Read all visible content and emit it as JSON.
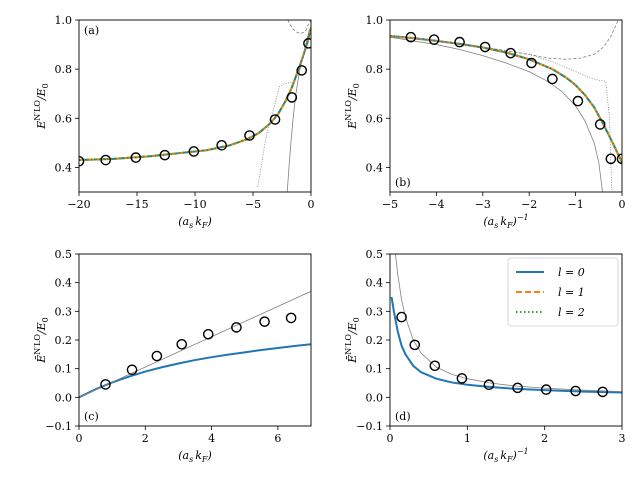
{
  "figure": {
    "description_free": true
  },
  "colors": {
    "l0": "#1f77b4",
    "l1": "#ff7f0e",
    "l2": "#2ca02c",
    "thin": "#808080",
    "marker": "#000000"
  },
  "legend": {
    "entries": [
      {
        "key": "l0",
        "label": "l = 0",
        "style": "solid"
      },
      {
        "key": "l1",
        "label": "l = 1",
        "style": "dashed"
      },
      {
        "key": "l2",
        "label": "l = 2",
        "style": "dotted"
      }
    ]
  },
  "chart_data": [
    {
      "id": "a",
      "type": "line",
      "panel_label": "(a)",
      "label_pos": "top-left",
      "xlabel": "(a_s k_F)",
      "ylabel": "E^{N'LO}/E_0",
      "xlim": [
        -20,
        0
      ],
      "ylim": [
        0.3,
        1.0
      ],
      "xticks": [
        -20,
        -15,
        -10,
        -5,
        0
      ],
      "yticks": [
        0.4,
        0.6,
        0.8,
        1.0
      ],
      "ytick_labels": [
        "0.4",
        "0.6",
        "0.8",
        "1.0"
      ],
      "series": [
        {
          "name": "l = 0",
          "style": "solid",
          "color_key": "l0",
          "x": [
            -20,
            -17,
            -14,
            -11,
            -9,
            -7,
            -5.5,
            -4.5,
            -3.5,
            -2.8,
            -2.2,
            -1.7,
            -1.3,
            -1.0,
            -0.7,
            -0.5,
            -0.3,
            -0.1,
            0
          ],
          "y": [
            0.43,
            0.435,
            0.445,
            0.46,
            0.47,
            0.49,
            0.515,
            0.54,
            0.58,
            0.62,
            0.67,
            0.72,
            0.77,
            0.81,
            0.85,
            0.88,
            0.91,
            0.95,
            0.97
          ]
        },
        {
          "name": "l = 1",
          "style": "dashed",
          "color_key": "l1",
          "x": [
            -20,
            -17,
            -14,
            -11,
            -9,
            -7,
            -5.5,
            -4.5,
            -3.5,
            -2.8,
            -2.2,
            -1.7,
            -1.3,
            -1.0,
            -0.7,
            -0.5,
            -0.3,
            -0.1,
            0
          ],
          "y": [
            0.43,
            0.435,
            0.445,
            0.46,
            0.47,
            0.49,
            0.515,
            0.54,
            0.58,
            0.62,
            0.67,
            0.72,
            0.77,
            0.81,
            0.85,
            0.88,
            0.91,
            0.95,
            0.97
          ]
        },
        {
          "name": "l = 2",
          "style": "dotted",
          "color_key": "l2",
          "x": [
            -20,
            -17,
            -14,
            -11,
            -9,
            -7,
            -5.5,
            -4.5,
            -3.5,
            -2.8,
            -2.2,
            -1.7,
            -1.3,
            -1.0,
            -0.7,
            -0.5,
            -0.3,
            -0.1,
            0
          ],
          "y": [
            0.43,
            0.435,
            0.445,
            0.46,
            0.47,
            0.49,
            0.515,
            0.54,
            0.58,
            0.62,
            0.67,
            0.72,
            0.77,
            0.81,
            0.85,
            0.88,
            0.91,
            0.95,
            0.97
          ]
        },
        {
          "name": "ref-solid",
          "style": "thin-solid",
          "color_key": "thin",
          "x": [
            -2.05,
            -1.9,
            -1.7,
            -1.5,
            -1.3,
            -1.1,
            -0.9,
            -0.7,
            -0.5,
            -0.3,
            -0.15
          ],
          "y": [
            0.3,
            0.4,
            0.52,
            0.62,
            0.7,
            0.76,
            0.81,
            0.85,
            0.89,
            0.93,
            0.96
          ]
        },
        {
          "name": "ref-dotted",
          "style": "thin-dotted",
          "color_key": "thin",
          "x": [
            -4.6,
            -4.3,
            -4.0,
            -3.7,
            -3.4,
            -3.1,
            -2.9,
            -2.7,
            -2.3,
            -1.9,
            -1.5
          ],
          "y": [
            0.32,
            0.4,
            0.49,
            0.56,
            0.61,
            0.66,
            0.7,
            0.73,
            0.74,
            0.745,
            0.75
          ]
        },
        {
          "name": "ref-dashed",
          "style": "thin-dashed",
          "color_key": "thin",
          "x": [
            -2.0,
            -1.6,
            -1.2,
            -0.9,
            -0.6,
            -0.4,
            -0.25,
            -0.12,
            -0.02
          ],
          "y": [
            1.0,
            0.965,
            0.95,
            0.945,
            0.95,
            0.96,
            0.98,
            0.99,
            1.0
          ]
        },
        {
          "name": "markers",
          "style": "markers",
          "color_key": "marker",
          "x": [
            -20,
            -17.7,
            -15.1,
            -12.6,
            -10.1,
            -7.7,
            -5.3,
            -3.1,
            -1.65,
            -0.8,
            -0.22
          ],
          "y": [
            0.425,
            0.43,
            0.44,
            0.45,
            0.465,
            0.49,
            0.53,
            0.595,
            0.685,
            0.795,
            0.905
          ]
        }
      ]
    },
    {
      "id": "b",
      "type": "line",
      "panel_label": "(b)",
      "label_pos": "bottom-left",
      "xlabel": "(a_s k_F)^{-1}",
      "ylabel": "E^{N'LO}/E_0",
      "xlim": [
        -5,
        0
      ],
      "ylim": [
        0.3,
        1.0
      ],
      "xticks": [
        -5,
        -4,
        -3,
        -2,
        -1,
        0
      ],
      "yticks": [
        0.4,
        0.6,
        0.8,
        1.0
      ],
      "ytick_labels": [
        "0.4",
        "0.6",
        "0.8",
        "1.0"
      ],
      "series": [
        {
          "name": "l = 0",
          "style": "solid",
          "color_key": "l0",
          "x": [
            -5,
            -4.5,
            -4,
            -3.5,
            -3,
            -2.5,
            -2,
            -1.5,
            -1.2,
            -1.0,
            -0.8,
            -0.6,
            -0.4,
            -0.2,
            0
          ],
          "y": [
            0.935,
            0.926,
            0.915,
            0.903,
            0.888,
            0.868,
            0.84,
            0.8,
            0.765,
            0.735,
            0.695,
            0.645,
            0.575,
            0.5,
            0.42
          ]
        },
        {
          "name": "l = 1",
          "style": "dashed",
          "color_key": "l1",
          "x": [
            -5,
            -4.5,
            -4,
            -3.5,
            -3,
            -2.5,
            -2,
            -1.5,
            -1.2,
            -1.0,
            -0.8,
            -0.6,
            -0.4,
            -0.2,
            0
          ],
          "y": [
            0.935,
            0.926,
            0.915,
            0.903,
            0.888,
            0.868,
            0.84,
            0.8,
            0.765,
            0.735,
            0.695,
            0.645,
            0.575,
            0.5,
            0.42
          ]
        },
        {
          "name": "l = 2",
          "style": "dotted",
          "color_key": "l2",
          "x": [
            -5,
            -4.5,
            -4,
            -3.5,
            -3,
            -2.5,
            -2,
            -1.5,
            -1.2,
            -1.0,
            -0.8,
            -0.6,
            -0.4,
            -0.2,
            0
          ],
          "y": [
            0.935,
            0.926,
            0.915,
            0.903,
            0.888,
            0.868,
            0.84,
            0.8,
            0.765,
            0.735,
            0.695,
            0.645,
            0.575,
            0.5,
            0.42
          ]
        },
        {
          "name": "ref-solid",
          "style": "thin-solid",
          "color_key": "thin",
          "x": [
            -5,
            -4.5,
            -4,
            -3.5,
            -3,
            -2.5,
            -2,
            -1.6,
            -1.3,
            -1.0,
            -0.8,
            -0.6,
            -0.5,
            -0.42
          ],
          "y": [
            0.93,
            0.915,
            0.9,
            0.88,
            0.855,
            0.825,
            0.79,
            0.75,
            0.71,
            0.65,
            0.59,
            0.5,
            0.42,
            0.3
          ]
        },
        {
          "name": "ref-dashed",
          "style": "thin-dashed",
          "color_key": "thin",
          "x": [
            -5,
            -4,
            -3,
            -2.5,
            -2,
            -1.6,
            -1.2,
            -0.9,
            -0.6,
            -0.4,
            -0.25,
            -0.15,
            -0.08
          ],
          "y": [
            0.935,
            0.915,
            0.89,
            0.875,
            0.86,
            0.845,
            0.84,
            0.845,
            0.86,
            0.89,
            0.93,
            0.97,
            1.0
          ]
        },
        {
          "name": "ref-dotted",
          "style": "thin-dotted",
          "color_key": "thin",
          "x": [
            -5,
            -4,
            -3,
            -2,
            -1.5,
            -1.0,
            -0.7,
            -0.5,
            -0.35,
            -0.27,
            -0.22
          ],
          "y": [
            0.935,
            0.915,
            0.89,
            0.86,
            0.83,
            0.79,
            0.765,
            0.755,
            0.75,
            0.6,
            0.3
          ]
        },
        {
          "name": "markers",
          "style": "markers",
          "color_key": "marker",
          "x": [
            -4.55,
            -4.05,
            -3.5,
            -2.95,
            -2.4,
            -1.95,
            -1.5,
            -0.95,
            -0.47,
            -0.24,
            0
          ],
          "y": [
            0.93,
            0.92,
            0.91,
            0.89,
            0.865,
            0.825,
            0.76,
            0.67,
            0.575,
            0.435,
            0.435
          ]
        }
      ]
    },
    {
      "id": "c",
      "type": "line",
      "panel_label": "(c)",
      "label_pos": "bottom-left",
      "xlabel": "(a_s k_F)",
      "ylabel": "Ē^{N'LO}/E_0",
      "xlim": [
        0,
        7
      ],
      "ylim": [
        -0.1,
        0.5
      ],
      "xticks": [
        0,
        2,
        4,
        6
      ],
      "yticks": [
        -0.1,
        0.0,
        0.1,
        0.2,
        0.3,
        0.4,
        0.5
      ],
      "ytick_labels": [
        "−0.1",
        "0.0",
        "0.1",
        "0.2",
        "0.3",
        "0.4",
        "0.5"
      ],
      "series": [
        {
          "name": "l = 0",
          "style": "solid",
          "color_key": "l0",
          "x": [
            0,
            0.5,
            1,
            1.5,
            2,
            2.5,
            3,
            3.5,
            4,
            4.5,
            5,
            5.5,
            6,
            6.5,
            7
          ],
          "y": [
            0,
            0.028,
            0.052,
            0.072,
            0.09,
            0.105,
            0.118,
            0.13,
            0.14,
            0.149,
            0.157,
            0.165,
            0.172,
            0.179,
            0.185
          ]
        },
        {
          "name": "ref-line",
          "style": "thin-solid",
          "color_key": "thin",
          "x": [
            0,
            7
          ],
          "y": [
            0,
            0.37
          ]
        },
        {
          "name": "markers",
          "style": "markers",
          "color_key": "marker",
          "x": [
            0.8,
            1.6,
            2.35,
            3.1,
            3.9,
            4.75,
            5.6,
            6.4
          ],
          "y": [
            0.045,
            0.096,
            0.144,
            0.185,
            0.22,
            0.244,
            0.264,
            0.277
          ]
        }
      ]
    },
    {
      "id": "d",
      "type": "line",
      "panel_label": "(d)",
      "label_pos": "bottom-left",
      "xlabel": "(a_s k_F)^{-1}",
      "ylabel": "Ē^{N'LO}/E_0",
      "xlim": [
        0,
        3
      ],
      "ylim": [
        -0.1,
        0.5
      ],
      "xticks": [
        0,
        1,
        2,
        3
      ],
      "yticks": [
        -0.1,
        0.0,
        0.1,
        0.2,
        0.3,
        0.4,
        0.5
      ],
      "ytick_labels": [
        "−0.1",
        "0.0",
        "0.1",
        "0.2",
        "0.3",
        "0.4",
        "0.5"
      ],
      "show_legend": true,
      "legend_pos": "top-right",
      "series": [
        {
          "name": "l = 0",
          "style": "solid",
          "color_key": "l0",
          "x": [
            0.02,
            0.05,
            0.1,
            0.15,
            0.2,
            0.3,
            0.4,
            0.6,
            0.8,
            1.0,
            1.3,
            1.6,
            2.0,
            2.5,
            3.0
          ],
          "y": [
            0.35,
            0.3,
            0.23,
            0.18,
            0.15,
            0.11,
            0.088,
            0.065,
            0.052,
            0.044,
            0.036,
            0.03,
            0.025,
            0.02,
            0.017
          ]
        },
        {
          "name": "ref-curve",
          "style": "thin-solid",
          "color_key": "thin",
          "x": [
            0.07,
            0.1,
            0.15,
            0.2,
            0.3,
            0.4,
            0.6,
            0.8,
            1.0,
            1.3,
            1.6,
            2.0,
            2.5,
            3.0
          ],
          "y": [
            0.5,
            0.43,
            0.34,
            0.28,
            0.2,
            0.155,
            0.105,
            0.08,
            0.065,
            0.05,
            0.04,
            0.032,
            0.025,
            0.02
          ]
        },
        {
          "name": "markers",
          "style": "markers",
          "color_key": "marker",
          "x": [
            0.15,
            0.32,
            0.58,
            0.93,
            1.28,
            1.65,
            2.02,
            2.4,
            2.75
          ],
          "y": [
            0.28,
            0.183,
            0.11,
            0.066,
            0.044,
            0.033,
            0.027,
            0.022,
            0.019
          ]
        }
      ]
    }
  ]
}
